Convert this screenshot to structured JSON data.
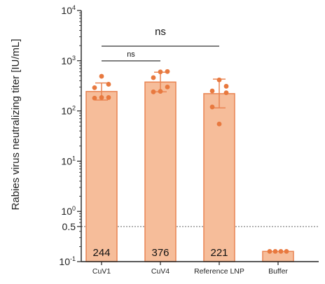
{
  "chart_data": {
    "type": "bar",
    "ylabel": "Rabies virus neutralizing titer [IU/mL]",
    "yscale": "log",
    "ylim": [
      0.1,
      10000
    ],
    "y_ticks": [
      {
        "base": "10",
        "exp": "4",
        "value": 10000
      },
      {
        "base": "10",
        "exp": "3",
        "value": 1000
      },
      {
        "base": "10",
        "exp": "2",
        "value": 100
      },
      {
        "base": "10",
        "exp": "1",
        "value": 10
      },
      {
        "base": "10",
        "exp": "0",
        "value": 1
      },
      {
        "base": "0.5",
        "exp": "",
        "value": 0.5
      },
      {
        "base": "10",
        "exp": "-1",
        "value": 0.1
      }
    ],
    "categories": [
      "CuV1",
      "CuV4",
      "Reference LNP",
      "Buffer"
    ],
    "values": [
      244,
      376,
      221,
      0.16
    ],
    "bar_labels": [
      "244",
      "376",
      "221",
      ""
    ],
    "error_upper": [
      360,
      590,
      430,
      null
    ],
    "error_lower": [
      165,
      240,
      115,
      null
    ],
    "points": [
      [
        490,
        340,
        290,
        185,
        180,
        185
      ],
      [
        600,
        610,
        460,
        300,
        240,
        245
      ],
      [
        415,
        310,
        250,
        230,
        120,
        55
      ],
      [
        0.16,
        0.16,
        0.16,
        0.16
      ]
    ],
    "reference_line": {
      "value": 0.5,
      "style": "dotted"
    },
    "significance": [
      {
        "label": "ns",
        "from": 0,
        "to": 2
      },
      {
        "label": "ns",
        "from": 0,
        "to": 1
      }
    ],
    "colors": {
      "bar_fill": "#f6bd9a",
      "bar_stroke": "#e98452",
      "points": "#e8793f",
      "axis": "#222222"
    }
  }
}
